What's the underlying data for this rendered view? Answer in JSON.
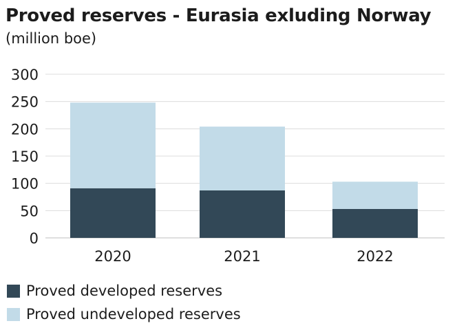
{
  "chart_data": {
    "type": "bar",
    "stacked": true,
    "title": "Proved reserves - Eurasia exluding Norway",
    "subtitle": "(million boe)",
    "categories": [
      "2020",
      "2021",
      "2022"
    ],
    "series": [
      {
        "name": "Proved developed reserves",
        "values": [
          91,
          87,
          53
        ],
        "color": "#324857"
      },
      {
        "name": "Proved undeveloped reserves",
        "values": [
          157,
          117,
          50
        ],
        "color": "#c2dbe8"
      }
    ],
    "ylim": [
      0,
      300
    ],
    "yticks": [
      0,
      50,
      100,
      150,
      200,
      250,
      300
    ],
    "grid": true,
    "legend_position": "bottom-left"
  }
}
